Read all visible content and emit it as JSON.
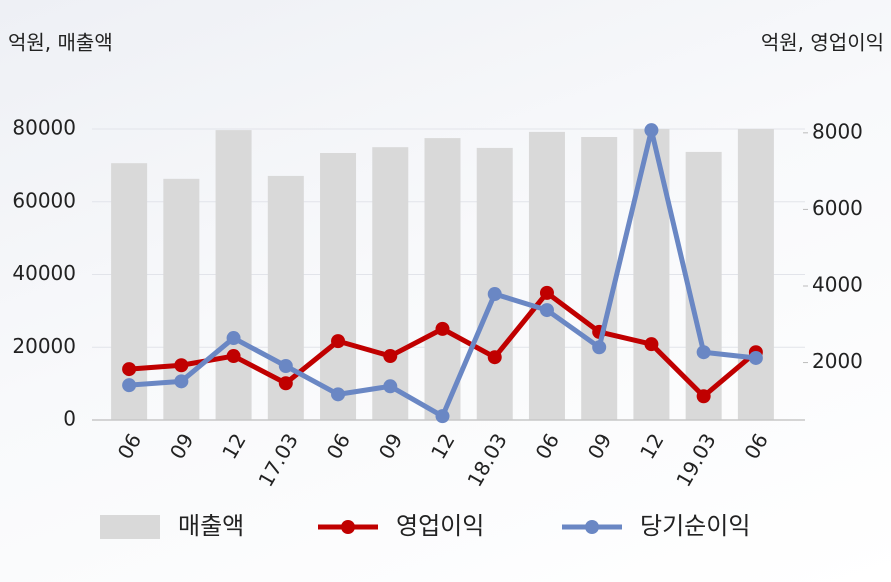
{
  "chart_data": {
    "type": "combo",
    "y_axis_title": "억원, 매출액",
    "y2_axis_title": "억원, 영업이익",
    "categories": [
      "06",
      "09",
      "12",
      "17.03",
      "06",
      "09",
      "12",
      "18.03",
      "06",
      "09",
      "12",
      "19.03",
      "06"
    ],
    "series": [
      {
        "name": "매출액",
        "type": "bar",
        "color": "#d9d9d9",
        "values": [
          70600,
          66300,
          79700,
          67100,
          73400,
          75000,
          77500,
          74800,
          79200,
          77800,
          80000,
          73700,
          80000
        ]
      },
      {
        "name": "영업이익",
        "type": "line",
        "axis": "y2",
        "color": "#c00000",
        "values": [
          1830,
          1930,
          2170,
          1460,
          2560,
          2170,
          2880,
          2140,
          3820,
          2800,
          2480,
          1120,
          2270
        ]
      },
      {
        "name": "당기순이익",
        "type": "line",
        "axis": "y2",
        "color": "#6a87c4",
        "values": [
          1410,
          1510,
          2640,
          1910,
          1170,
          1380,
          600,
          3790,
          3370,
          2400,
          8070,
          2270,
          2120
        ]
      }
    ],
    "ylim": [
      0,
      80000
    ],
    "yticks": [
      0,
      20000,
      40000,
      60000,
      80000
    ],
    "y2lim": [
      500,
      8100
    ],
    "y2ticks": [
      2000,
      4000,
      6000,
      8000
    ],
    "grid": true
  }
}
